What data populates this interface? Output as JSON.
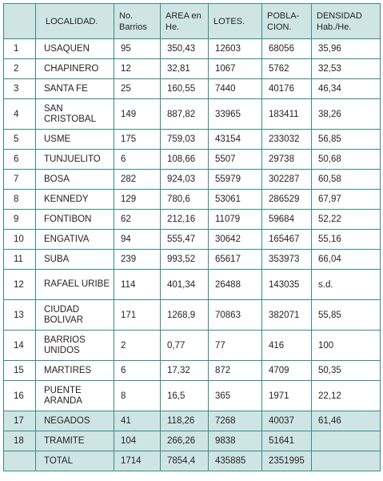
{
  "headers": [
    "",
    "LOCALIDAD.",
    "No. Barrios",
    "AREA en He.",
    "LOTES.",
    "POBLA- CION.",
    "DENSIDAD Hab./He."
  ],
  "rows": [
    {
      "n": "1",
      "loc": "USAQUEN",
      "barrios": "95",
      "area": "350,43",
      "lotes": "12603",
      "poblacion": "68056",
      "densidad": "35,96"
    },
    {
      "n": "2",
      "loc": "CHAPINERO",
      "barrios": "12",
      "area": "32,81",
      "lotes": "1067",
      "poblacion": "5762",
      "densidad": "32,53"
    },
    {
      "n": "3",
      "loc": "SANTA FE",
      "barrios": "25",
      "area": "160,55",
      "lotes": "7440",
      "poblacion": "40176",
      "densidad": "46,34"
    },
    {
      "n": "4",
      "loc": "SAN CRISTOBAL",
      "barrios": "149",
      "area": "887,82",
      "lotes": "33965",
      "poblacion": "183411",
      "densidad": "38,26"
    },
    {
      "n": "5",
      "loc": "USME",
      "barrios": "175",
      "area": "759,03",
      "lotes": "43154",
      "poblacion": "233032",
      "densidad": "56,85"
    },
    {
      "n": "6",
      "loc": "TUNJUELITO",
      "barrios": "6",
      "area": "108,66",
      "lotes": "5507",
      "poblacion": "29738",
      "densidad": "50,68"
    },
    {
      "n": "7",
      "loc": "BOSA",
      "barrios": "282",
      "area": "924,03",
      "lotes": "55979",
      "poblacion": "302287",
      "densidad": "60,58"
    },
    {
      "n": "8",
      "loc": "KENNEDY",
      "barrios": "129",
      "area": "780,6",
      "lotes": "53061",
      "poblacion": "286529",
      "densidad": "67,97"
    },
    {
      "n": "9",
      "loc": "FONTIBON",
      "barrios": "62",
      "area": "212,16",
      "lotes": "11079",
      "poblacion": "59684",
      "densidad": "52,22"
    },
    {
      "n": "10",
      "loc": "ENGATIVA",
      "barrios": "94",
      "area": "555,47",
      "lotes": "30642",
      "poblacion": "165467",
      "densidad": "55,16"
    },
    {
      "n": "11",
      "loc": "SUBA",
      "barrios": "239",
      "area": "993,52",
      "lotes": "65617",
      "poblacion": "353973",
      "densidad": "66,04"
    },
    {
      "n": "12",
      "loc": "RAFAEL URIBE",
      "barrios": "114",
      "area": "401,34",
      "lotes": "26488",
      "poblacion": "143035",
      "densidad": "s.d."
    },
    {
      "n": "13",
      "loc": "CIUDAD BOLIVAR",
      "barrios": "171",
      "area": "1268,9",
      "lotes": "70863",
      "poblacion": "382071",
      "densidad": "55,85"
    },
    {
      "n": "14",
      "loc": "BARRIOS UNIDOS",
      "barrios": "2",
      "area": "0,77",
      "lotes": "77",
      "poblacion": "416",
      "densidad": "100"
    },
    {
      "n": "15",
      "loc": "MARTIRES",
      "barrios": "6",
      "area": "17,32",
      "lotes": "872",
      "poblacion": "4709",
      "densidad": "50,35"
    },
    {
      "n": "16",
      "loc": "PUENTE ARANDA",
      "barrios": "8",
      "area": "16,5",
      "lotes": "365",
      "poblacion": "1971",
      "densidad": "22,12"
    },
    {
      "n": "17",
      "loc": "NEGADOS",
      "barrios": "41",
      "area": "118,26",
      "lotes": "7268",
      "poblacion": "40037",
      "densidad": "61,46"
    },
    {
      "n": "18",
      "loc": "TRAMITE",
      "barrios": "104",
      "area": "266,26",
      "lotes": "9838",
      "poblacion": "51641",
      "densidad": ""
    },
    {
      "n": "",
      "loc": "TOTAL",
      "barrios": "1714",
      "area": "7854,4",
      "lotes": "435885",
      "poblacion": "2351995",
      "densidad": ""
    }
  ],
  "colors": {
    "border": "#3a8a8c",
    "shade": "#cfe5e4",
    "text": "#231f20"
  }
}
